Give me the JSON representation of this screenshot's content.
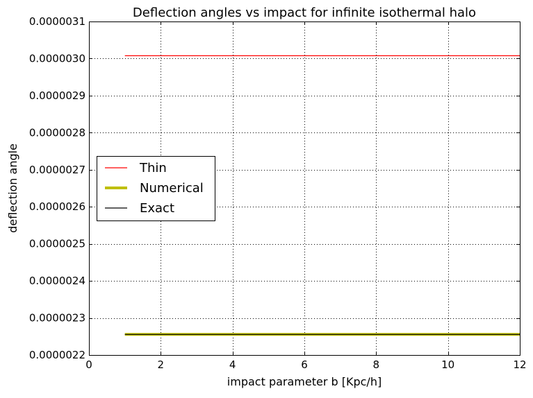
{
  "chart_data": {
    "type": "line",
    "title": "Deflection angles vs impact for infinite isothermal halo",
    "xlabel": "impact parameter b [Kpc/h]",
    "ylabel": "deflection angle",
    "xlim": [
      0,
      12
    ],
    "ylim": [
      2.2e-06,
      3.1e-06
    ],
    "xticks": [
      0,
      2,
      4,
      6,
      8,
      10,
      12
    ],
    "xtick_labels": [
      "0",
      "2",
      "4",
      "6",
      "8",
      "10",
      "12"
    ],
    "yticks": [
      2.2e-06,
      2.3e-06,
      2.4e-06,
      2.5e-06,
      2.6e-06,
      2.7e-06,
      2.8e-06,
      2.9e-06,
      3e-06,
      3.1e-06
    ],
    "ytick_labels": [
      "0.0000022",
      "0.0000023",
      "0.0000024",
      "0.0000025",
      "0.0000026",
      "0.0000027",
      "0.0000028",
      "0.0000029",
      "0.0000030",
      "0.0000031"
    ],
    "grid": true,
    "legend_position": "center-left",
    "series": [
      {
        "name": "Thin",
        "color": "#ff0000",
        "style": "thin",
        "x": [
          1,
          12
        ],
        "y": [
          3.0075e-06,
          3.0075e-06
        ]
      },
      {
        "name": "Numerical",
        "color": "#bfbf00",
        "style": "thick",
        "x": [
          1,
          12
        ],
        "y": [
          2.2555e-06,
          2.2555e-06
        ]
      },
      {
        "name": "Exact",
        "color": "#000000",
        "style": "thin",
        "x": [
          1,
          12
        ],
        "y": [
          2.2555e-06,
          2.2555e-06
        ]
      }
    ]
  }
}
